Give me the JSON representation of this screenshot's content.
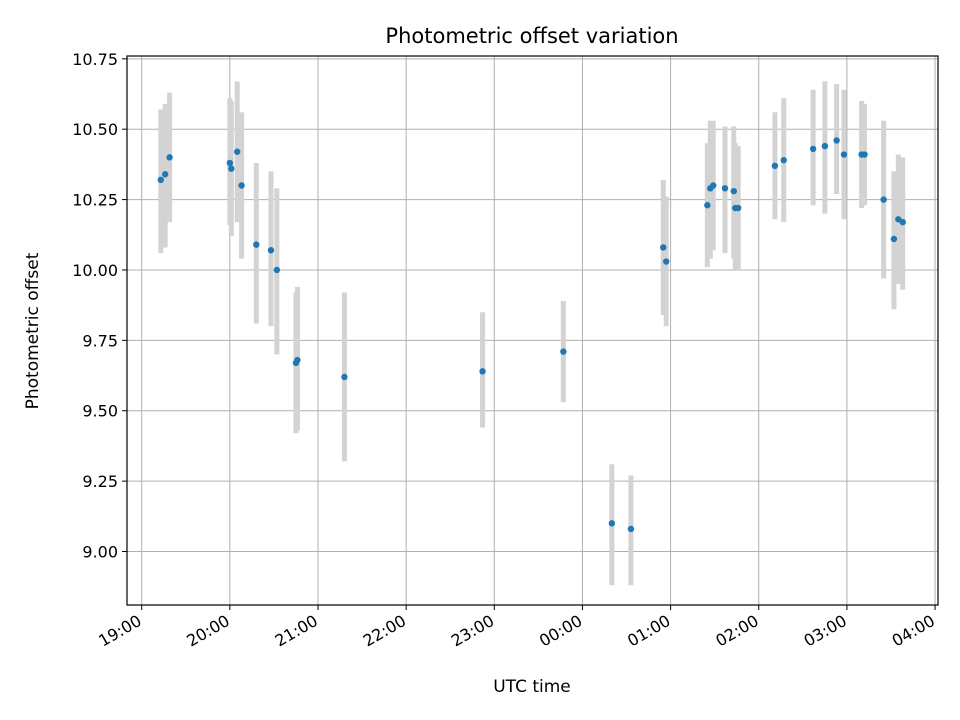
{
  "chart_data": {
    "type": "scatter",
    "title": "Photometric offset variation",
    "xlabel": "UTC time",
    "ylabel": "Photometric offset",
    "x_unit": "UTC time (HH:MM), night spanning midnight",
    "xlim": [
      "18:50",
      "04:02"
    ],
    "ylim": [
      8.81,
      10.76
    ],
    "x_ticks": [
      "19:00",
      "20:00",
      "21:00",
      "22:00",
      "23:00",
      "00:00",
      "01:00",
      "02:00",
      "03:00",
      "04:00"
    ],
    "y_ticks": [
      "9.00",
      "9.25",
      "9.50",
      "9.75",
      "10.00",
      "10.25",
      "10.50",
      "10.75"
    ],
    "grid": true,
    "colors": {
      "point": "#1f77b4",
      "errorbar": "#d3d3d3",
      "grid": "#b0b0b0"
    },
    "series": [
      {
        "points": [
          {
            "t": "19:13",
            "y": 10.32,
            "lo": 10.06,
            "hi": 10.57
          },
          {
            "t": "19:16",
            "y": 10.34,
            "lo": 10.08,
            "hi": 10.59
          },
          {
            "t": "19:19",
            "y": 10.4,
            "lo": 10.17,
            "hi": 10.63
          },
          {
            "t": "20:00",
            "y": 10.38,
            "lo": 10.16,
            "hi": 10.61
          },
          {
            "t": "20:01",
            "y": 10.36,
            "lo": 10.12,
            "hi": 10.6
          },
          {
            "t": "20:05",
            "y": 10.42,
            "lo": 10.17,
            "hi": 10.67
          },
          {
            "t": "20:08",
            "y": 10.3,
            "lo": 10.04,
            "hi": 10.56
          },
          {
            "t": "20:18",
            "y": 10.09,
            "lo": 9.81,
            "hi": 10.38
          },
          {
            "t": "20:28",
            "y": 10.07,
            "lo": 9.8,
            "hi": 10.35
          },
          {
            "t": "20:32",
            "y": 10.0,
            "lo": 9.7,
            "hi": 10.29
          },
          {
            "t": "20:45",
            "y": 9.67,
            "lo": 9.42,
            "hi": 9.92
          },
          {
            "t": "20:46",
            "y": 9.68,
            "lo": 9.43,
            "hi": 9.94
          },
          {
            "t": "21:18",
            "y": 9.62,
            "lo": 9.32,
            "hi": 9.92
          },
          {
            "t": "22:52",
            "y": 9.64,
            "lo": 9.44,
            "hi": 9.85
          },
          {
            "t": "23:47",
            "y": 9.71,
            "lo": 9.53,
            "hi": 9.89
          },
          {
            "t": "00:20",
            "y": 9.1,
            "lo": 8.88,
            "hi": 9.31
          },
          {
            "t": "00:33",
            "y": 9.08,
            "lo": 8.88,
            "hi": 9.27
          },
          {
            "t": "00:55",
            "y": 10.08,
            "lo": 9.84,
            "hi": 10.32
          },
          {
            "t": "00:57",
            "y": 10.03,
            "lo": 9.8,
            "hi": 10.26
          },
          {
            "t": "01:25",
            "y": 10.23,
            "lo": 10.01,
            "hi": 10.45
          },
          {
            "t": "01:27",
            "y": 10.29,
            "lo": 10.04,
            "hi": 10.53
          },
          {
            "t": "01:29",
            "y": 10.3,
            "lo": 10.07,
            "hi": 10.53
          },
          {
            "t": "01:37",
            "y": 10.29,
            "lo": 10.06,
            "hi": 10.51
          },
          {
            "t": "01:43",
            "y": 10.28,
            "lo": 10.04,
            "hi": 10.51
          },
          {
            "t": "01:44",
            "y": 10.22,
            "lo": 10.0,
            "hi": 10.45
          },
          {
            "t": "01:46",
            "y": 10.22,
            "lo": 10.0,
            "hi": 10.44
          },
          {
            "t": "02:11",
            "y": 10.37,
            "lo": 10.18,
            "hi": 10.56
          },
          {
            "t": "02:17",
            "y": 10.39,
            "lo": 10.17,
            "hi": 10.61
          },
          {
            "t": "02:37",
            "y": 10.43,
            "lo": 10.23,
            "hi": 10.64
          },
          {
            "t": "02:45",
            "y": 10.44,
            "lo": 10.2,
            "hi": 10.67
          },
          {
            "t": "02:53",
            "y": 10.46,
            "lo": 10.27,
            "hi": 10.66
          },
          {
            "t": "02:58",
            "y": 10.41,
            "lo": 10.18,
            "hi": 10.64
          },
          {
            "t": "03:10",
            "y": 10.41,
            "lo": 10.22,
            "hi": 10.6
          },
          {
            "t": "03:12",
            "y": 10.41,
            "lo": 10.23,
            "hi": 10.59
          },
          {
            "t": "03:25",
            "y": 10.25,
            "lo": 9.97,
            "hi": 10.53
          },
          {
            "t": "03:32",
            "y": 10.11,
            "lo": 9.86,
            "hi": 10.35
          },
          {
            "t": "03:35",
            "y": 10.18,
            "lo": 9.95,
            "hi": 10.41
          },
          {
            "t": "03:38",
            "y": 10.17,
            "lo": 9.93,
            "hi": 10.4
          }
        ]
      }
    ]
  }
}
